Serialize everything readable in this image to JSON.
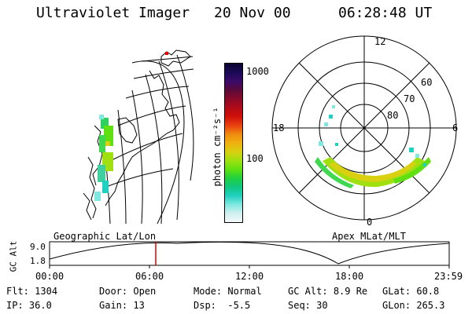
{
  "header": {
    "title": "Ultraviolet Imager",
    "date": "20 Nov 00",
    "time": "06:28:48 UT"
  },
  "colorbar": {
    "unit_label": "photon cm⁻²s⁻¹",
    "ticks": [
      "1000",
      "100"
    ],
    "colors": [
      "#0a0530",
      "#1a0a55",
      "#3a0a6a",
      "#5a0a3a",
      "#8a0a2a",
      "#b00a1a",
      "#d0100a",
      "#e84010",
      "#f08a10",
      "#f0b010",
      "#d8d010",
      "#a0e010",
      "#60e010",
      "#20d040",
      "#10c880",
      "#20d0c0",
      "#80e8e0",
      "#d0f0f0",
      "#f4f8f8"
    ]
  },
  "polar": {
    "lat_labels": [
      "80",
      "70",
      "60"
    ],
    "mlt_labels": {
      "top": "12",
      "bottom": "0",
      "left": "18",
      "right": "6"
    }
  },
  "timeline": {
    "left_title": "Geographic Lat/Lon",
    "right_title": "Apex MLat/MLT",
    "y_axis_label": "GC Alt",
    "y_ticks": [
      "9.0",
      "1.8"
    ],
    "x_ticks": [
      "00:00",
      "06:00",
      "12:00",
      "18:00",
      "23:59"
    ],
    "marker_color": "#e00000"
  },
  "info": {
    "flt_label": "Flt:",
    "flt_value": "1304",
    "ip_label": "IP:",
    "ip_value": "36.0",
    "door_label": "Door:",
    "door_value": "Open",
    "gain_label": "Gain:",
    "gain_value": "13",
    "mode_label": "Mode:",
    "mode_value": "Normal",
    "dsp_label": "Dsp:",
    "dsp_value": "-5.5",
    "gcalt_label": "GC Alt:",
    "gcalt_value": "8.9 Re",
    "seq_label": "Seq:",
    "seq_value": "30",
    "glat_label": "GLat:",
    "glat_value": "60.8",
    "glon_label": "GLon:",
    "glon_value": "265.3"
  }
}
